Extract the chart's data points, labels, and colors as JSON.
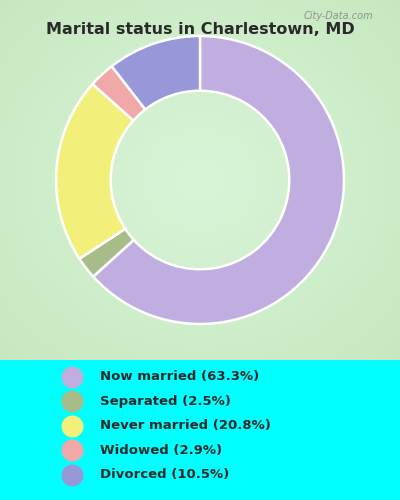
{
  "title": "Marital status in Charlestown, MD",
  "categories": [
    "Now married",
    "Separated",
    "Never married",
    "Widowed",
    "Divorced"
  ],
  "values": [
    63.3,
    2.5,
    20.8,
    2.9,
    10.5
  ],
  "colors": [
    "#c0aee0",
    "#a8bc8a",
    "#f2f07a",
    "#f0a8a8",
    "#9898d8"
  ],
  "bg_top": "#00ffff",
  "bg_chart_colors": [
    "#c8e8c0",
    "#dff2d8",
    "#f0faf0",
    "#dff2d8",
    "#c8e8c0"
  ],
  "legend_bg": "#00ffff",
  "title_color": "#2a2a2a",
  "legend_text_color": "#2a2a2a",
  "watermark": "City-Data.com"
}
